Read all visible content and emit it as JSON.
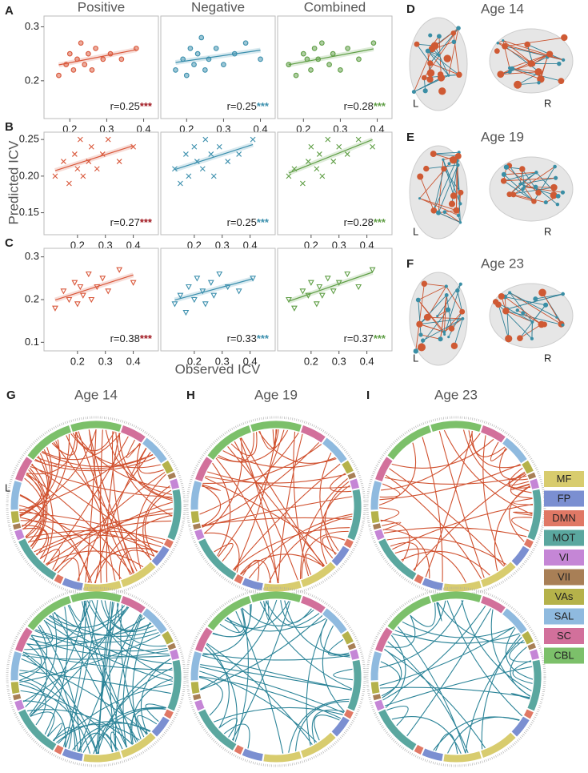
{
  "chart_data": [
    {
      "type": "scatter",
      "title": "Positive",
      "marker": "o",
      "color": "#d9573a",
      "star_color": "#a01820",
      "x": [
        0.17,
        0.19,
        0.2,
        0.21,
        0.22,
        0.23,
        0.24,
        0.25,
        0.26,
        0.27,
        0.29,
        0.31,
        0.34,
        0.38
      ],
      "values": [
        0.21,
        0.23,
        0.25,
        0.22,
        0.24,
        0.27,
        0.23,
        0.25,
        0.22,
        0.26,
        0.24,
        0.25,
        0.24,
        0.26
      ],
      "xlim": [
        0.13,
        0.44
      ],
      "ylim": [
        0.13,
        0.32
      ],
      "xticks": [
        0.2,
        0.3,
        0.4
      ],
      "yticks": [
        0.2,
        0.3
      ],
      "annotation": "r=0.25",
      "stars": "***"
    },
    {
      "type": "scatter",
      "title": "Negative",
      "marker": "o",
      "color": "#3b8fad",
      "star_color": "#3b8fad",
      "x": [
        0.17,
        0.19,
        0.2,
        0.21,
        0.22,
        0.23,
        0.24,
        0.25,
        0.26,
        0.28,
        0.3,
        0.33,
        0.36,
        0.4
      ],
      "values": [
        0.22,
        0.24,
        0.21,
        0.26,
        0.23,
        0.25,
        0.28,
        0.22,
        0.24,
        0.26,
        0.23,
        0.25,
        0.27,
        0.24
      ],
      "xlim": [
        0.13,
        0.44
      ],
      "ylim": [
        0.13,
        0.32
      ],
      "xticks": [
        0.2,
        0.3,
        0.4
      ],
      "annotation": "r=0.25",
      "stars": "***"
    },
    {
      "type": "scatter",
      "title": "Combined",
      "marker": "o",
      "color": "#5f9e45",
      "star_color": "#5f9e45",
      "x": [
        0.16,
        0.18,
        0.2,
        0.21,
        0.22,
        0.23,
        0.24,
        0.25,
        0.27,
        0.28,
        0.3,
        0.32,
        0.35,
        0.39
      ],
      "values": [
        0.23,
        0.21,
        0.25,
        0.24,
        0.22,
        0.26,
        0.24,
        0.27,
        0.23,
        0.25,
        0.22,
        0.26,
        0.24,
        0.27
      ],
      "xlim": [
        0.13,
        0.44
      ],
      "ylim": [
        0.13,
        0.32
      ],
      "xticks": [
        0.2,
        0.3,
        0.4
      ],
      "annotation": "r=0.28",
      "stars": "***"
    },
    {
      "type": "scatter",
      "marker": "x",
      "color": "#d9573a",
      "star_color": "#a01820",
      "x": [
        0.12,
        0.15,
        0.17,
        0.19,
        0.2,
        0.21,
        0.22,
        0.24,
        0.25,
        0.27,
        0.29,
        0.31,
        0.35,
        0.4
      ],
      "values": [
        0.2,
        0.22,
        0.19,
        0.23,
        0.21,
        0.25,
        0.2,
        0.22,
        0.24,
        0.21,
        0.23,
        0.25,
        0.22,
        0.24
      ],
      "xlim": [
        0.08,
        0.49
      ],
      "ylim": [
        0.12,
        0.26
      ],
      "xticks": [
        0.2,
        0.3,
        0.4
      ],
      "yticks": [
        {
          "value": 0.15,
          "label": "0.15"
        },
        {
          "value": 0.2,
          "label": "0.20"
        },
        {
          "value": 0.25,
          "label": "0.25"
        }
      ],
      "annotation": "r=0.27",
      "stars": "***"
    },
    {
      "type": "scatter",
      "marker": "x",
      "color": "#3b8fad",
      "star_color": "#3b8fad",
      "x": [
        0.13,
        0.15,
        0.17,
        0.18,
        0.2,
        0.21,
        0.23,
        0.24,
        0.26,
        0.27,
        0.29,
        0.32,
        0.36,
        0.41
      ],
      "values": [
        0.21,
        0.19,
        0.23,
        0.2,
        0.24,
        0.22,
        0.21,
        0.25,
        0.23,
        0.2,
        0.24,
        0.22,
        0.23,
        0.25
      ],
      "xlim": [
        0.08,
        0.49
      ],
      "ylim": [
        0.12,
        0.26
      ],
      "xticks": [
        0.2,
        0.3,
        0.4
      ],
      "annotation": "r=0.25",
      "stars": "***"
    },
    {
      "type": "scatter",
      "marker": "x",
      "color": "#5f9e45",
      "star_color": "#5f9e45",
      "x": [
        0.12,
        0.14,
        0.17,
        0.19,
        0.2,
        0.22,
        0.23,
        0.24,
        0.26,
        0.28,
        0.3,
        0.33,
        0.37,
        0.42
      ],
      "values": [
        0.2,
        0.21,
        0.19,
        0.22,
        0.24,
        0.21,
        0.23,
        0.2,
        0.25,
        0.22,
        0.24,
        0.23,
        0.25,
        0.24
      ],
      "xlim": [
        0.08,
        0.49
      ],
      "ylim": [
        0.12,
        0.26
      ],
      "xticks": [
        0.2,
        0.3,
        0.4
      ],
      "annotation": "r=0.28",
      "stars": "***"
    },
    {
      "type": "scatter",
      "marker": "v",
      "color": "#d9573a",
      "star_color": "#a01820",
      "x": [
        0.12,
        0.15,
        0.17,
        0.19,
        0.2,
        0.21,
        0.22,
        0.24,
        0.25,
        0.27,
        0.29,
        0.31,
        0.35,
        0.4
      ],
      "values": [
        0.18,
        0.22,
        0.2,
        0.24,
        0.19,
        0.23,
        0.21,
        0.26,
        0.2,
        0.23,
        0.25,
        0.22,
        0.27,
        0.24
      ],
      "xlim": [
        0.08,
        0.49
      ],
      "ylim": [
        0.08,
        0.32
      ],
      "xticks": [
        0.2,
        0.3,
        0.4
      ],
      "yticks": [
        0.1,
        0.2,
        0.3
      ],
      "annotation": "r=0.38",
      "stars": "***"
    },
    {
      "type": "scatter",
      "marker": "v",
      "color": "#3b8fad",
      "star_color": "#3b8fad",
      "x": [
        0.13,
        0.15,
        0.17,
        0.18,
        0.2,
        0.21,
        0.23,
        0.24,
        0.26,
        0.27,
        0.29,
        0.32,
        0.36,
        0.41
      ],
      "values": [
        0.19,
        0.21,
        0.17,
        0.23,
        0.2,
        0.25,
        0.22,
        0.19,
        0.24,
        0.21,
        0.26,
        0.23,
        0.22,
        0.25
      ],
      "xlim": [
        0.08,
        0.49
      ],
      "ylim": [
        0.08,
        0.32
      ],
      "xticks": [
        0.2,
        0.3,
        0.4
      ],
      "annotation": "r=0.33",
      "stars": "***"
    },
    {
      "type": "scatter",
      "marker": "v",
      "color": "#5f9e45",
      "star_color": "#5f9e45",
      "x": [
        0.12,
        0.14,
        0.17,
        0.19,
        0.2,
        0.22,
        0.23,
        0.24,
        0.26,
        0.28,
        0.3,
        0.33,
        0.37,
        0.42
      ],
      "values": [
        0.2,
        0.18,
        0.22,
        0.21,
        0.24,
        0.19,
        0.23,
        0.21,
        0.25,
        0.22,
        0.24,
        0.26,
        0.23,
        0.27
      ],
      "xlim": [
        0.08,
        0.49
      ],
      "ylim": [
        0.08,
        0.32
      ],
      "xticks": [
        0.2,
        0.3,
        0.4
      ],
      "annotation": "r=0.37",
      "stars": "***"
    }
  ],
  "row_labels": [
    "A",
    "B",
    "C"
  ],
  "y_label": "Predicted ICV",
  "x_label": "Observed ICV",
  "brains": [
    {
      "label": "D",
      "title": "Age 14"
    },
    {
      "label": "E",
      "title": "Age 19"
    },
    {
      "label": "F",
      "title": "Age 23"
    }
  ],
  "side_labels": [
    "L",
    "R"
  ],
  "chord_panels": [
    {
      "label": "G",
      "title": "Age 14"
    },
    {
      "label": "H",
      "title": "Age 19"
    },
    {
      "label": "I",
      "title": "Age 23"
    }
  ],
  "networks": [
    {
      "name": "MF",
      "color": "#d8cc6e"
    },
    {
      "name": "FP",
      "color": "#7b8fd1"
    },
    {
      "name": "DMN",
      "color": "#e07865"
    },
    {
      "name": "MOT",
      "color": "#5aa79f"
    },
    {
      "name": "VI",
      "color": "#c586d6"
    },
    {
      "name": "VII",
      "color": "#a87f56"
    },
    {
      "name": "VAs",
      "color": "#b5b24a"
    },
    {
      "name": "SAL",
      "color": "#8fbadf"
    },
    {
      "name": "SC",
      "color": "#d2709b"
    },
    {
      "name": "CBL",
      "color": "#7cc06a"
    }
  ]
}
